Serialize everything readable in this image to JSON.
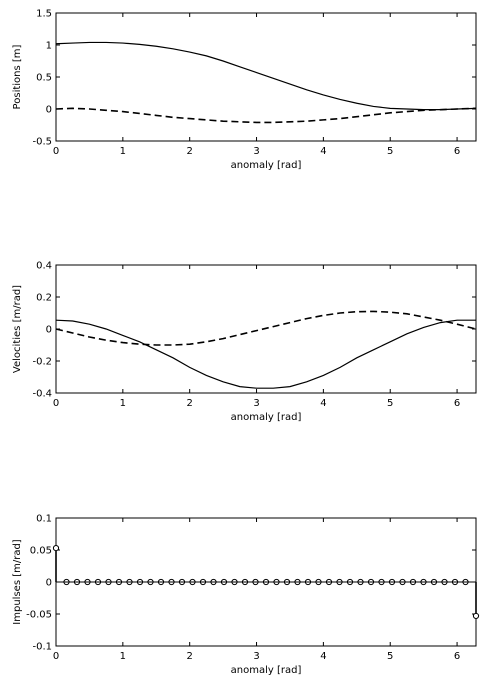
{
  "chart_data": [
    {
      "type": "line",
      "xlabel": "anomaly [rad]",
      "ylabel": "Positions [m]",
      "xlim": [
        0,
        6.2832
      ],
      "ylim": [
        -0.5,
        1.5
      ],
      "xticks": [
        0,
        1,
        2,
        3,
        4,
        5,
        6
      ],
      "yticks": [
        -0.5,
        0,
        0.5,
        1,
        1.5
      ],
      "ytick_labels": [
        "-0.5",
        "0",
        "0.5",
        "1",
        "1.5"
      ],
      "grid": false,
      "series": [
        {
          "style": "solid",
          "x": [
            0,
            0.25,
            0.5,
            0.75,
            1.0,
            1.25,
            1.5,
            1.75,
            2.0,
            2.25,
            2.5,
            2.75,
            3.0,
            3.25,
            3.5,
            3.75,
            4.0,
            4.25,
            4.5,
            4.75,
            5.0,
            5.25,
            5.5,
            5.75,
            6.0,
            6.2832
          ],
          "y": [
            1.02,
            1.03,
            1.04,
            1.04,
            1.03,
            1.01,
            0.98,
            0.94,
            0.89,
            0.83,
            0.75,
            0.66,
            0.57,
            0.48,
            0.39,
            0.3,
            0.22,
            0.15,
            0.09,
            0.04,
            0.01,
            0.0,
            -0.01,
            -0.01,
            0.0,
            0.01
          ]
        },
        {
          "style": "dashed",
          "x": [
            0,
            0.25,
            0.5,
            0.75,
            1.0,
            1.25,
            1.5,
            1.75,
            2.0,
            2.25,
            2.5,
            2.75,
            3.0,
            3.25,
            3.5,
            3.75,
            4.0,
            4.25,
            4.5,
            4.75,
            5.0,
            5.25,
            5.5,
            5.75,
            6.0,
            6.2832
          ],
          "y": [
            0.0,
            0.01,
            0.0,
            -0.02,
            -0.04,
            -0.07,
            -0.1,
            -0.13,
            -0.15,
            -0.17,
            -0.19,
            -0.2,
            -0.21,
            -0.21,
            -0.2,
            -0.19,
            -0.17,
            -0.15,
            -0.12,
            -0.09,
            -0.06,
            -0.04,
            -0.02,
            -0.01,
            0.0,
            0.01
          ]
        }
      ]
    },
    {
      "type": "line",
      "xlabel": "anomaly [rad]",
      "ylabel": "Velocities [m/rad]",
      "xlim": [
        0,
        6.2832
      ],
      "ylim": [
        -0.4,
        0.4
      ],
      "xticks": [
        0,
        1,
        2,
        3,
        4,
        5,
        6
      ],
      "yticks": [
        -0.4,
        -0.2,
        0,
        0.2,
        0.4
      ],
      "ytick_labels": [
        "-0.4",
        "-0.2",
        "0",
        "0.2",
        "0.4"
      ],
      "grid": false,
      "series": [
        {
          "style": "solid",
          "x": [
            0,
            0.25,
            0.5,
            0.75,
            1.0,
            1.25,
            1.5,
            1.75,
            2.0,
            2.25,
            2.5,
            2.75,
            3.0,
            3.25,
            3.5,
            3.75,
            4.0,
            4.25,
            4.5,
            4.75,
            5.0,
            5.25,
            5.5,
            5.75,
            6.0,
            6.2832
          ],
          "y": [
            0.055,
            0.05,
            0.03,
            0.0,
            -0.04,
            -0.08,
            -0.13,
            -0.18,
            -0.24,
            -0.29,
            -0.33,
            -0.36,
            -0.37,
            -0.37,
            -0.36,
            -0.33,
            -0.29,
            -0.24,
            -0.18,
            -0.13,
            -0.08,
            -0.03,
            0.01,
            0.04,
            0.055,
            0.055
          ]
        },
        {
          "style": "dashed",
          "x": [
            0,
            0.25,
            0.5,
            0.75,
            1.0,
            1.25,
            1.5,
            1.75,
            2.0,
            2.25,
            2.5,
            2.75,
            3.0,
            3.25,
            3.5,
            3.75,
            4.0,
            4.25,
            4.5,
            4.75,
            5.0,
            5.25,
            5.5,
            5.75,
            6.0,
            6.2832
          ],
          "y": [
            0.0,
            -0.025,
            -0.05,
            -0.07,
            -0.085,
            -0.095,
            -0.1,
            -0.1,
            -0.095,
            -0.08,
            -0.06,
            -0.035,
            -0.01,
            0.015,
            0.04,
            0.065,
            0.085,
            0.1,
            0.108,
            0.11,
            0.105,
            0.095,
            0.075,
            0.055,
            0.03,
            0.0
          ]
        }
      ]
    },
    {
      "type": "stem",
      "xlabel": "anomaly [rad]",
      "ylabel": "Impulses [m/rad]",
      "xlim": [
        0,
        6.2832
      ],
      "ylim": [
        -0.1,
        0.1
      ],
      "xticks": [
        0,
        1,
        2,
        3,
        4,
        5,
        6
      ],
      "yticks": [
        -0.1,
        -0.05,
        0,
        0.05,
        0.1
      ],
      "ytick_labels": [
        "-0.1",
        "-0.05",
        "0",
        "0.05",
        "0.1"
      ],
      "grid": false,
      "stems": [
        {
          "x": 0.0,
          "y": 0.053
        },
        {
          "x": 6.2832,
          "y": -0.053
        }
      ],
      "marker_count": 41,
      "marker_y": 0
    }
  ]
}
